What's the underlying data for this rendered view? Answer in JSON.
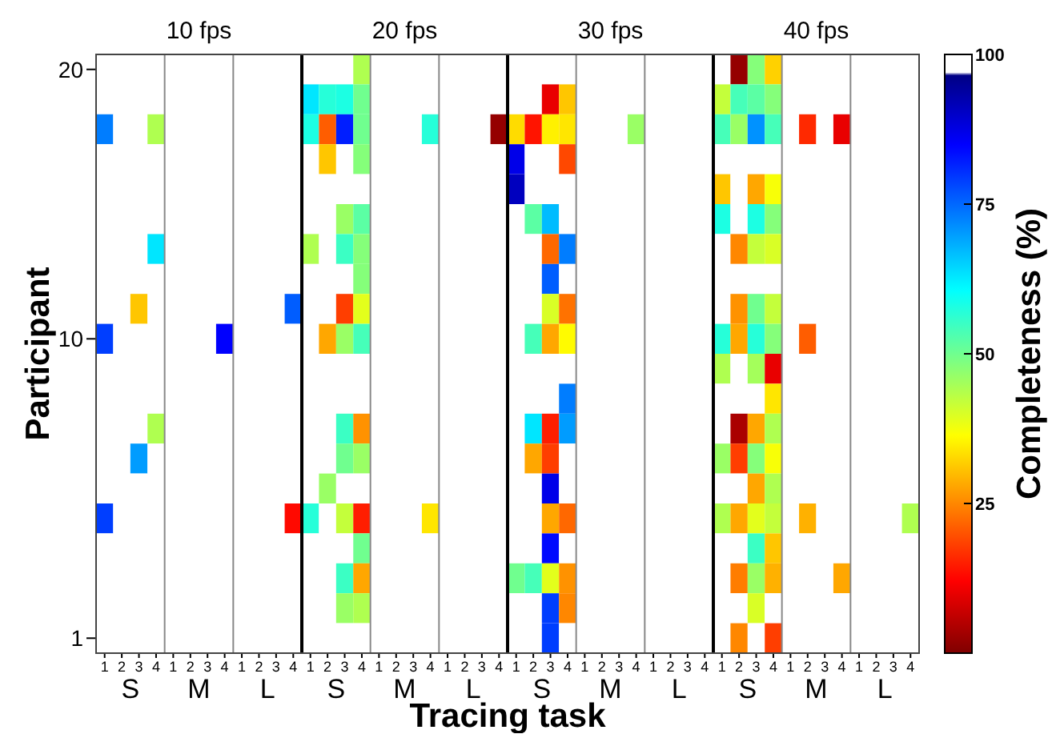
{
  "chart_data": {
    "type": "heatmap",
    "xlabel": "Tracing task",
    "ylabel": "Participant",
    "clabel": "Completeness (%)",
    "annotations": [
      "10 fps",
      "20 fps",
      "30 fps",
      "40 fps",
      "S",
      "M",
      "L",
      "S",
      "M",
      "L",
      "S",
      "M",
      "L",
      "S",
      "M",
      "L"
    ],
    "categories": [
      "1",
      "2",
      "3",
      "4",
      "1",
      "2",
      "3",
      "4",
      "1",
      "2",
      "3",
      "4",
      "1",
      "2",
      "3",
      "4",
      "1",
      "2",
      "3",
      "4",
      "1",
      "2",
      "3",
      "4",
      "1",
      "2",
      "3",
      "4",
      "1",
      "2",
      "3",
      "4",
      "1",
      "2",
      "3",
      "4",
      "1",
      "2",
      "3",
      "4",
      "1",
      "2",
      "3",
      "4",
      "1",
      "2",
      "3",
      "4"
    ],
    "y_categories": [
      "20",
      null,
      null,
      null,
      null,
      null,
      null,
      null,
      null,
      "10",
      null,
      null,
      null,
      null,
      null,
      null,
      null,
      null,
      null,
      "1"
    ],
    "clim": [
      0,
      100
    ],
    "cticks": [
      25,
      50,
      75,
      100
    ],
    "cells": [
      [
        100,
        100,
        100,
        100,
        100,
        100,
        100,
        100,
        100,
        100,
        100,
        100,
        100,
        100,
        100,
        44,
        100,
        100,
        100,
        100,
        100,
        100,
        100,
        100,
        100,
        100,
        100,
        100,
        100,
        100,
        100,
        100,
        100,
        100,
        100,
        100,
        100,
        2,
        48,
        32,
        100,
        100,
        100,
        100,
        100,
        100,
        100,
        100
      ],
      [
        100,
        100,
        100,
        100,
        100,
        100,
        100,
        100,
        100,
        100,
        100,
        100,
        63,
        57,
        58,
        50,
        100,
        100,
        100,
        100,
        100,
        100,
        100,
        100,
        100,
        100,
        10,
        31,
        100,
        100,
        100,
        100,
        100,
        100,
        100,
        100,
        42,
        54,
        52,
        48,
        100,
        100,
        100,
        100,
        100,
        100,
        100,
        100
      ],
      [
        73,
        100,
        100,
        44,
        100,
        100,
        100,
        100,
        100,
        100,
        100,
        100,
        58,
        21,
        82,
        50,
        100,
        100,
        100,
        57,
        100,
        100,
        100,
        2,
        33,
        14,
        35,
        34,
        100,
        100,
        100,
        46,
        100,
        100,
        100,
        100,
        54,
        46,
        71,
        54,
        100,
        16,
        100,
        10,
        100,
        100,
        100,
        100
      ],
      [
        100,
        100,
        100,
        100,
        100,
        100,
        100,
        100,
        100,
        100,
        100,
        100,
        100,
        31,
        100,
        48,
        100,
        100,
        100,
        100,
        100,
        100,
        100,
        100,
        87,
        100,
        100,
        19,
        100,
        100,
        100,
        100,
        100,
        100,
        100,
        100,
        100,
        100,
        100,
        100,
        100,
        100,
        100,
        100,
        100,
        100,
        100,
        100
      ],
      [
        100,
        100,
        100,
        100,
        100,
        100,
        100,
        100,
        100,
        100,
        100,
        100,
        100,
        100,
        100,
        100,
        100,
        100,
        100,
        100,
        100,
        100,
        100,
        100,
        91,
        100,
        100,
        100,
        100,
        100,
        100,
        100,
        100,
        100,
        100,
        100,
        31,
        100,
        28,
        37,
        100,
        100,
        100,
        100,
        100,
        100,
        100,
        100
      ],
      [
        100,
        100,
        100,
        100,
        100,
        100,
        100,
        100,
        100,
        100,
        100,
        100,
        100,
        100,
        46,
        52,
        100,
        100,
        100,
        100,
        100,
        100,
        100,
        100,
        100,
        52,
        67,
        100,
        100,
        100,
        100,
        100,
        100,
        100,
        100,
        100,
        58,
        100,
        58,
        48,
        100,
        100,
        100,
        100,
        100,
        100,
        100,
        100
      ],
      [
        100,
        100,
        100,
        63,
        100,
        100,
        100,
        100,
        100,
        100,
        100,
        100,
        44,
        100,
        55,
        48,
        100,
        100,
        100,
        100,
        100,
        100,
        100,
        100,
        100,
        100,
        22,
        73,
        100,
        100,
        100,
        100,
        100,
        100,
        100,
        100,
        100,
        25,
        42,
        40,
        100,
        100,
        100,
        100,
        100,
        100,
        100,
        100
      ],
      [
        100,
        100,
        100,
        100,
        100,
        100,
        100,
        100,
        100,
        100,
        100,
        100,
        100,
        100,
        100,
        48,
        100,
        100,
        100,
        100,
        100,
        100,
        100,
        100,
        100,
        100,
        76,
        100,
        100,
        100,
        100,
        100,
        100,
        100,
        100,
        100,
        100,
        100,
        100,
        100,
        100,
        100,
        100,
        100,
        100,
        100,
        100,
        100
      ],
      [
        100,
        100,
        31,
        100,
        100,
        100,
        100,
        100,
        100,
        100,
        100,
        76,
        100,
        100,
        18,
        39,
        100,
        100,
        100,
        100,
        100,
        100,
        100,
        100,
        100,
        100,
        40,
        23,
        100,
        100,
        100,
        100,
        100,
        100,
        100,
        100,
        100,
        26,
        50,
        42,
        100,
        100,
        100,
        100,
        100,
        100,
        100,
        100
      ],
      [
        79,
        100,
        100,
        100,
        100,
        100,
        100,
        85,
        100,
        100,
        100,
        100,
        100,
        28,
        46,
        54,
        100,
        100,
        100,
        100,
        100,
        100,
        100,
        100,
        100,
        54,
        28,
        36,
        100,
        100,
        100,
        100,
        100,
        100,
        100,
        100,
        57,
        28,
        57,
        48,
        100,
        21,
        100,
        100,
        100,
        100,
        100,
        100
      ],
      [
        100,
        100,
        100,
        100,
        100,
        100,
        100,
        100,
        100,
        100,
        100,
        100,
        100,
        100,
        100,
        100,
        100,
        100,
        100,
        100,
        100,
        100,
        100,
        100,
        100,
        100,
        100,
        100,
        100,
        100,
        100,
        100,
        100,
        100,
        100,
        100,
        44,
        100,
        45,
        10,
        100,
        100,
        100,
        100,
        100,
        100,
        100,
        100
      ],
      [
        100,
        100,
        100,
        100,
        100,
        100,
        100,
        100,
        100,
        100,
        100,
        100,
        100,
        100,
        100,
        100,
        100,
        100,
        100,
        100,
        100,
        100,
        100,
        100,
        100,
        100,
        100,
        73,
        100,
        100,
        100,
        100,
        100,
        100,
        100,
        100,
        100,
        100,
        100,
        34,
        100,
        100,
        100,
        100,
        100,
        100,
        100,
        100
      ],
      [
        100,
        100,
        100,
        44,
        100,
        100,
        100,
        100,
        100,
        100,
        100,
        100,
        100,
        100,
        55,
        26,
        100,
        100,
        100,
        100,
        100,
        100,
        100,
        100,
        100,
        63,
        15,
        70,
        100,
        100,
        100,
        100,
        100,
        100,
        100,
        100,
        100,
        4,
        28,
        44,
        100,
        100,
        100,
        100,
        100,
        100,
        100,
        100
      ],
      [
        100,
        100,
        70,
        100,
        100,
        100,
        100,
        100,
        100,
        100,
        100,
        100,
        100,
        100,
        50,
        46,
        100,
        100,
        100,
        100,
        100,
        100,
        100,
        100,
        100,
        28,
        18,
        100,
        100,
        100,
        100,
        100,
        100,
        100,
        100,
        100,
        46,
        18,
        48,
        37,
        100,
        100,
        100,
        100,
        100,
        100,
        100,
        100
      ],
      [
        100,
        100,
        100,
        100,
        100,
        100,
        100,
        100,
        100,
        100,
        100,
        100,
        100,
        46,
        100,
        100,
        100,
        100,
        100,
        100,
        100,
        100,
        100,
        100,
        100,
        100,
        87,
        100,
        100,
        100,
        100,
        100,
        100,
        100,
        100,
        100,
        100,
        100,
        28,
        44,
        100,
        100,
        100,
        100,
        100,
        100,
        100,
        100
      ],
      [
        79,
        100,
        100,
        100,
        100,
        100,
        100,
        100,
        100,
        100,
        100,
        13,
        57,
        100,
        42,
        15,
        100,
        100,
        100,
        34,
        100,
        100,
        100,
        100,
        100,
        100,
        28,
        22,
        100,
        100,
        100,
        100,
        100,
        100,
        100,
        100,
        44,
        28,
        39,
        42,
        100,
        29,
        100,
        100,
        100,
        100,
        100,
        44
      ],
      [
        100,
        100,
        100,
        100,
        100,
        100,
        100,
        100,
        100,
        100,
        100,
        100,
        100,
        100,
        100,
        50,
        100,
        100,
        100,
        100,
        100,
        100,
        100,
        100,
        100,
        100,
        84,
        100,
        100,
        100,
        100,
        100,
        100,
        100,
        100,
        100,
        100,
        100,
        55,
        31,
        100,
        100,
        100,
        100,
        100,
        100,
        100,
        100
      ],
      [
        100,
        100,
        100,
        100,
        100,
        100,
        100,
        100,
        100,
        100,
        100,
        100,
        100,
        100,
        55,
        28,
        100,
        100,
        100,
        100,
        100,
        100,
        100,
        100,
        50,
        54,
        39,
        26,
        100,
        100,
        100,
        100,
        100,
        100,
        100,
        100,
        100,
        24,
        46,
        29,
        100,
        100,
        100,
        28,
        100,
        100,
        100,
        100
      ],
      [
        100,
        100,
        100,
        100,
        100,
        100,
        100,
        100,
        100,
        100,
        100,
        100,
        100,
        100,
        46,
        44,
        100,
        100,
        100,
        100,
        100,
        100,
        100,
        100,
        100,
        100,
        79,
        25,
        100,
        100,
        100,
        100,
        100,
        100,
        100,
        100,
        100,
        100,
        40,
        100,
        100,
        100,
        100,
        100,
        100,
        100,
        100,
        100
      ],
      [
        100,
        100,
        100,
        100,
        100,
        100,
        100,
        100,
        100,
        100,
        100,
        100,
        100,
        100,
        100,
        100,
        100,
        100,
        100,
        100,
        100,
        100,
        100,
        100,
        100,
        100,
        79,
        100,
        100,
        100,
        100,
        100,
        100,
        100,
        100,
        100,
        100,
        25,
        100,
        18,
        100,
        100,
        100,
        100,
        100,
        100,
        100,
        100
      ]
    ]
  }
}
